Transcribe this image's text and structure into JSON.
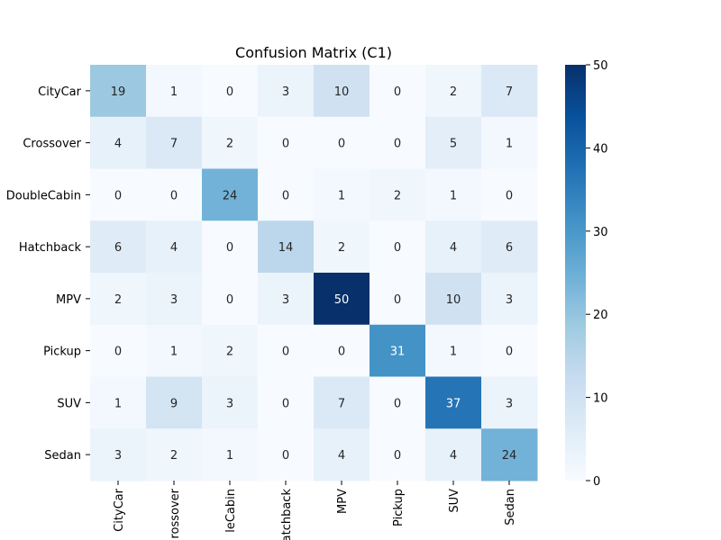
{
  "chart_data": {
    "type": "heatmap",
    "title": "Confusion Matrix (C1)",
    "xlabel": "",
    "ylabel": "",
    "rows": [
      "CityCar",
      "Crossover",
      "DoubleCabin",
      "Hatchback",
      "MPV",
      "Pickup",
      "SUV",
      "Sedan"
    ],
    "columns": [
      "CityCar",
      "Crossover",
      "DoubleCabin",
      "Hatchback",
      "MPV",
      "Pickup",
      "SUV",
      "Sedan"
    ],
    "column_tick_labels_visible": [
      "CityCar",
      "rossover",
      "leCabin",
      "atchback",
      "MPV",
      "Pickup",
      "SUV",
      "Sedan"
    ],
    "values": [
      [
        19,
        1,
        0,
        3,
        10,
        0,
        2,
        7
      ],
      [
        4,
        7,
        2,
        0,
        0,
        0,
        5,
        1
      ],
      [
        0,
        0,
        24,
        0,
        1,
        2,
        1,
        0
      ],
      [
        6,
        4,
        0,
        14,
        2,
        0,
        4,
        6
      ],
      [
        2,
        3,
        0,
        3,
        50,
        0,
        10,
        3
      ],
      [
        0,
        1,
        2,
        0,
        0,
        31,
        1,
        0
      ],
      [
        1,
        9,
        3,
        0,
        7,
        0,
        37,
        3
      ],
      [
        3,
        2,
        1,
        0,
        4,
        0,
        4,
        24
      ]
    ],
    "colorbar": {
      "min": 0,
      "max": 50,
      "ticks": [
        0,
        10,
        20,
        30,
        40,
        50
      ],
      "colormap": "Blues"
    }
  },
  "colors": {
    "blues_low": "#f7fbff",
    "blues_high": "#08306b"
  }
}
